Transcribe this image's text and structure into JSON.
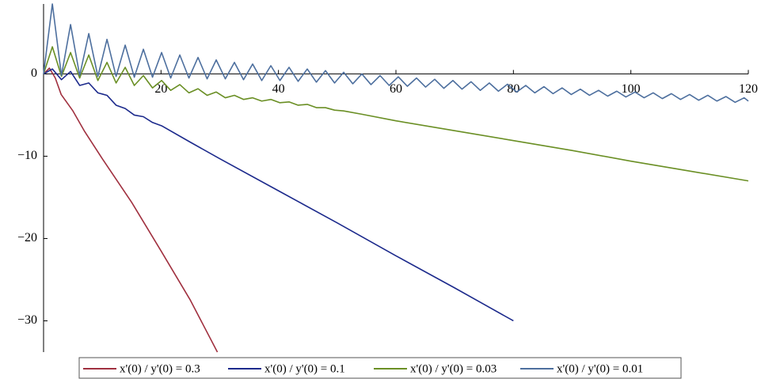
{
  "chart_data": {
    "type": "line",
    "xlim": [
      0,
      120
    ],
    "ylim": [
      -33.8,
      8.5
    ],
    "xticks": [
      20,
      40,
      60,
      80,
      100,
      120
    ],
    "yticks": [
      0,
      {
        "value": -10,
        "label": "−10"
      },
      {
        "value": -20,
        "label": "−20"
      },
      {
        "value": -30,
        "label": "−30"
      }
    ],
    "series": [
      {
        "name": "x'(0) / y'(0) = 0.3",
        "color": "#a0303f",
        "x": [
          0,
          1,
          2,
          3,
          4,
          5,
          7,
          10,
          15,
          20,
          25,
          29.6
        ],
        "values": [
          0,
          0.7,
          -0.5,
          -2.5,
          -3.5,
          -4.5,
          -7,
          -10.3,
          -15.6,
          -21.5,
          -27.5,
          -33.8
        ]
      },
      {
        "name": "x'(0) / y'(0) = 0.1",
        "color": "#1c2a8c",
        "x": [
          0,
          1.5,
          3.05,
          4.6,
          6.15,
          7.7,
          9.25,
          10.8,
          12.35,
          13.9,
          15.45,
          17,
          18.55,
          20.1,
          25,
          30,
          40,
          50,
          60,
          70,
          80
        ],
        "values": [
          0,
          0.6,
          -0.7,
          0.3,
          -1.4,
          -1.1,
          -2.3,
          -2.6,
          -3.8,
          -4.2,
          -5,
          -5.2,
          -5.9,
          -6.3,
          -8.3,
          -10.3,
          -14.2,
          -18.1,
          -22.1,
          -26,
          -30
        ]
      },
      {
        "name": "x'(0) / y'(0) = 0.03",
        "color": "#6a8f24",
        "x": [
          0,
          1.5,
          3.05,
          4.6,
          6.15,
          7.7,
          9.25,
          10.8,
          12.35,
          13.9,
          15.45,
          17,
          18.55,
          20.1,
          21.65,
          23.2,
          24.75,
          26.3,
          27.85,
          29.4,
          30.95,
          32.5,
          34.05,
          35.6,
          37.15,
          38.7,
          40.25,
          41.8,
          43.35,
          44.9,
          46.45,
          48,
          49.55,
          51.1,
          54.2,
          60,
          70,
          80,
          90,
          100,
          110,
          120
        ],
        "values": [
          0,
          3.3,
          -0.3,
          2.6,
          -0.5,
          2.3,
          -0.8,
          1.4,
          -1.1,
          0.8,
          -1.4,
          -0.2,
          -1.7,
          -0.8,
          -2,
          -1.3,
          -2.3,
          -1.8,
          -2.6,
          -2.2,
          -2.9,
          -2.6,
          -3.1,
          -2.9,
          -3.3,
          -3.1,
          -3.5,
          -3.4,
          -3.8,
          -3.7,
          -4.1,
          -4.1,
          -4.4,
          -4.5,
          -4.9,
          -5.7,
          -6.9,
          -8.1,
          -9.3,
          -10.6,
          -11.8,
          -13
        ]
      },
      {
        "name": "x'(0) / y'(0) = 0.01",
        "color": "#4d6f9e",
        "x": [
          0,
          1.5,
          3.05,
          4.6,
          6.15,
          7.7,
          9.25,
          10.8,
          12.35,
          13.9,
          15.45,
          17,
          18.55,
          20.1,
          21.65,
          23.2,
          24.75,
          26.3,
          27.85,
          29.4,
          30.95,
          32.5,
          34.05,
          35.6,
          37.15,
          38.7,
          40.25,
          41.8,
          43.35,
          44.9,
          46.45,
          48,
          49.55,
          51.1,
          52.65,
          54.2,
          55.75,
          57.3,
          58.85,
          60.4,
          61.95,
          63.5,
          65.05,
          66.6,
          68.15,
          69.7,
          71.25,
          72.8,
          74.35,
          75.9,
          77.45,
          79,
          80.55,
          82.1,
          83.65,
          85.2,
          86.75,
          88.3,
          89.85,
          91.4,
          92.95,
          94.5,
          96.05,
          97.6,
          99.15,
          100.7,
          102.25,
          103.8,
          105.35,
          106.9,
          108.45,
          110,
          111.55,
          113.1,
          114.65,
          116.2,
          117.75,
          119.3,
          120
        ],
        "values": [
          0,
          8.5,
          -0.2,
          6,
          -0.2,
          4.9,
          -0.3,
          4.2,
          -0.3,
          3.5,
          -0.4,
          3,
          -0.4,
          2.6,
          -0.5,
          2.3,
          -0.5,
          2,
          -0.6,
          1.7,
          -0.6,
          1.4,
          -0.7,
          1.2,
          -0.8,
          1,
          -0.8,
          0.8,
          -0.9,
          0.6,
          -1,
          0.4,
          -1.1,
          0.2,
          -1.2,
          0,
          -1.3,
          -0.2,
          -1.4,
          -0.35,
          -1.5,
          -0.5,
          -1.6,
          -0.65,
          -1.75,
          -0.8,
          -1.85,
          -0.95,
          -2,
          -1.1,
          -2.1,
          -1.25,
          -2.2,
          -1.4,
          -2.3,
          -1.55,
          -2.4,
          -1.7,
          -2.5,
          -1.85,
          -2.6,
          -2,
          -2.7,
          -2.1,
          -2.8,
          -2.2,
          -2.9,
          -2.3,
          -3,
          -2.4,
          -3.1,
          -2.5,
          -3.2,
          -2.6,
          -3.3,
          -2.75,
          -3.45,
          -2.9,
          -3.3
        ]
      }
    ]
  }
}
